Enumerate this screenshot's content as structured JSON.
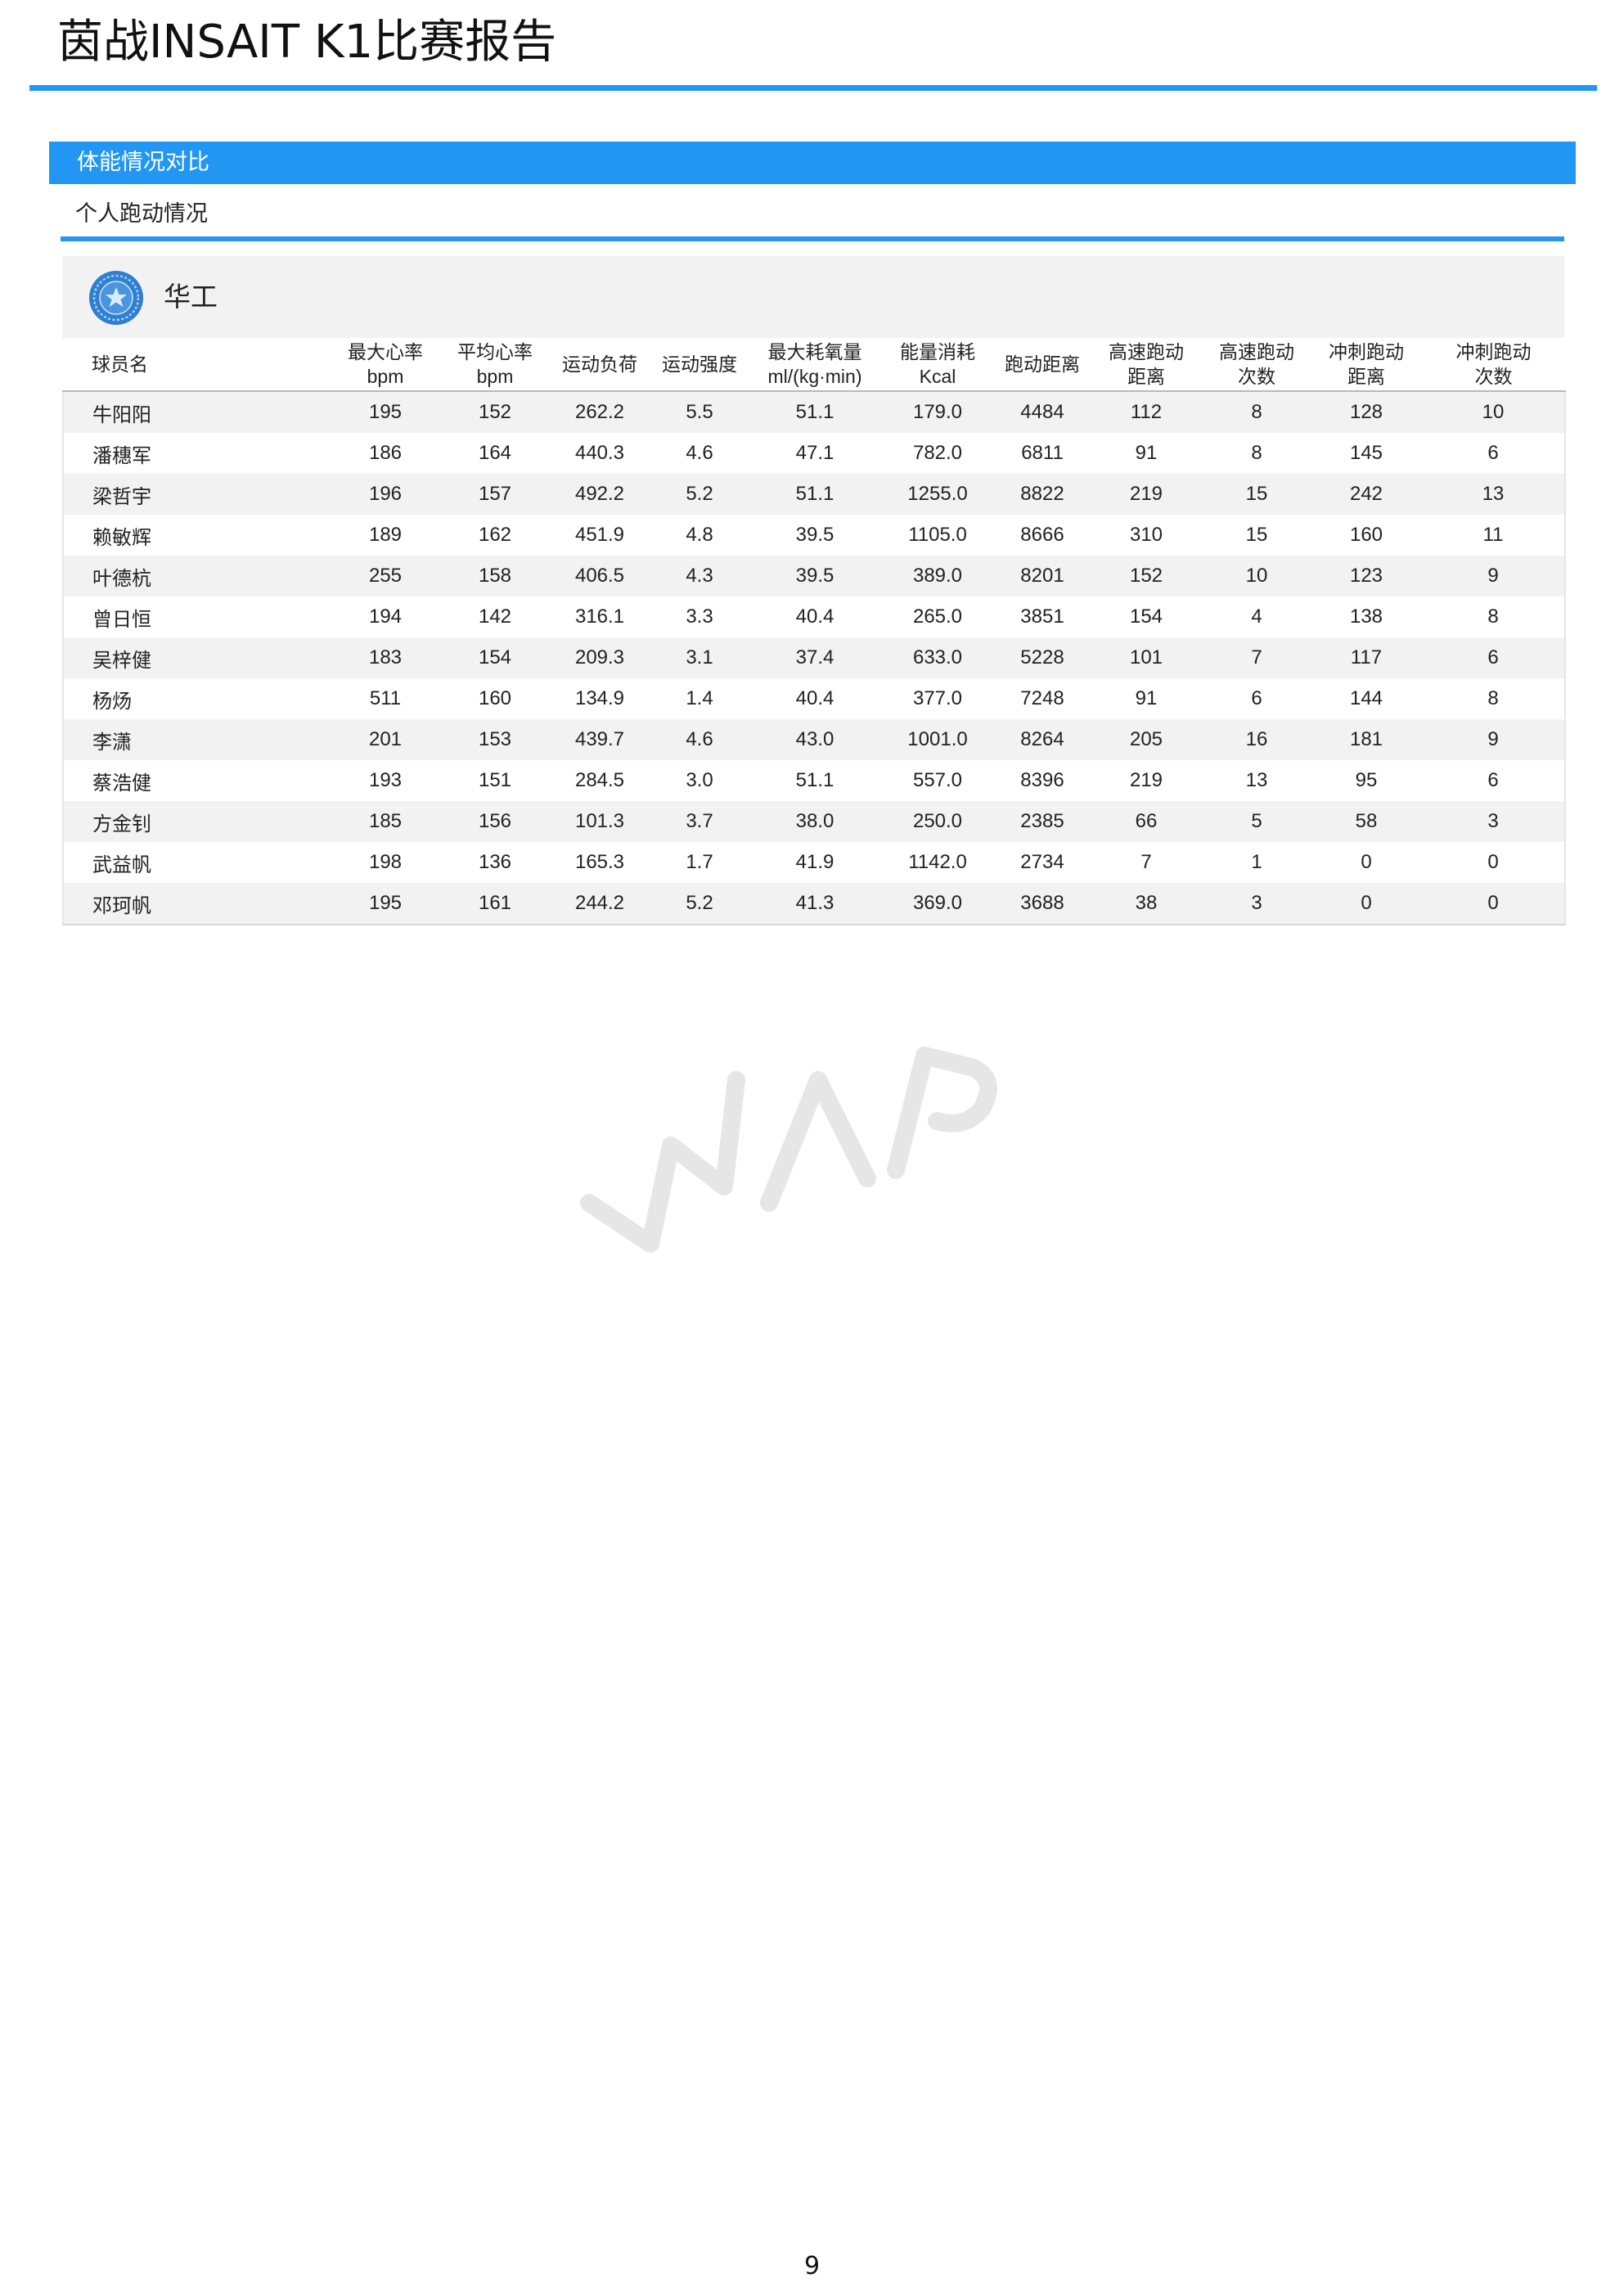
{
  "header": {
    "title": "茵战INSAIT K1比赛报告"
  },
  "section": {
    "title": "体能情况对比",
    "subtitle": "个人跑动情况"
  },
  "team": {
    "name": "华工",
    "logo_icon": "team-crest-icon"
  },
  "table": {
    "columns": [
      [
        "球员名"
      ],
      [
        "最大心率",
        "bpm"
      ],
      [
        "平均心率",
        "bpm"
      ],
      [
        "运动负荷"
      ],
      [
        "运动强度"
      ],
      [
        "最大耗氧量",
        "ml/(kg·min)"
      ],
      [
        "能量消耗",
        "Kcal"
      ],
      [
        "跑动距离"
      ],
      [
        "高速跑动",
        "距离"
      ],
      [
        "高速跑动",
        "次数"
      ],
      [
        "冲刺跑动",
        "距离"
      ],
      [
        "冲刺跑动",
        "次数"
      ]
    ],
    "rows": [
      [
        "牛阳阳",
        "195",
        "152",
        "262.2",
        "5.5",
        "51.1",
        "179.0",
        "4484",
        "112",
        "8",
        "128",
        "10"
      ],
      [
        "潘穗军",
        "186",
        "164",
        "440.3",
        "4.6",
        "47.1",
        "782.0",
        "6811",
        "91",
        "8",
        "145",
        "6"
      ],
      [
        "梁哲宇",
        "196",
        "157",
        "492.2",
        "5.2",
        "51.1",
        "1255.0",
        "8822",
        "219",
        "15",
        "242",
        "13"
      ],
      [
        "赖敏辉",
        "189",
        "162",
        "451.9",
        "4.8",
        "39.5",
        "1105.0",
        "8666",
        "310",
        "15",
        "160",
        "11"
      ],
      [
        "叶德杭",
        "255",
        "158",
        "406.5",
        "4.3",
        "39.5",
        "389.0",
        "8201",
        "152",
        "10",
        "123",
        "9"
      ],
      [
        "曾日恒",
        "194",
        "142",
        "316.1",
        "3.3",
        "40.4",
        "265.0",
        "3851",
        "154",
        "4",
        "138",
        "8"
      ],
      [
        "吴梓健",
        "183",
        "154",
        "209.3",
        "3.1",
        "37.4",
        "633.0",
        "5228",
        "101",
        "7",
        "117",
        "6"
      ],
      [
        "杨炀",
        "511",
        "160",
        "134.9",
        "1.4",
        "40.4",
        "377.0",
        "7248",
        "91",
        "6",
        "144",
        "8"
      ],
      [
        "李潇",
        "201",
        "153",
        "439.7",
        "4.6",
        "43.0",
        "1001.0",
        "8264",
        "205",
        "16",
        "181",
        "9"
      ],
      [
        "蔡浩健",
        "193",
        "151",
        "284.5",
        "3.0",
        "51.1",
        "557.0",
        "8396",
        "219",
        "13",
        "95",
        "6"
      ],
      [
        "方金钊",
        "185",
        "156",
        "101.3",
        "3.7",
        "38.0",
        "250.0",
        "2385",
        "66",
        "5",
        "58",
        "3"
      ],
      [
        "武益帆",
        "198",
        "136",
        "165.3",
        "1.7",
        "41.9",
        "1142.0",
        "2734",
        "7",
        "1",
        "0",
        "0"
      ],
      [
        "邓珂帆",
        "195",
        "161",
        "244.2",
        "5.2",
        "41.3",
        "369.0",
        "3688",
        "38",
        "3",
        "0",
        "0"
      ]
    ]
  },
  "watermark": {
    "text": "WPS",
    "icon": "wps-watermark-icon"
  },
  "footer": {
    "page_number": "9"
  },
  "colors": {
    "accent": "#2196f3",
    "row_stripe": "#f2f2f2",
    "team_band": "#f2f2f2"
  }
}
